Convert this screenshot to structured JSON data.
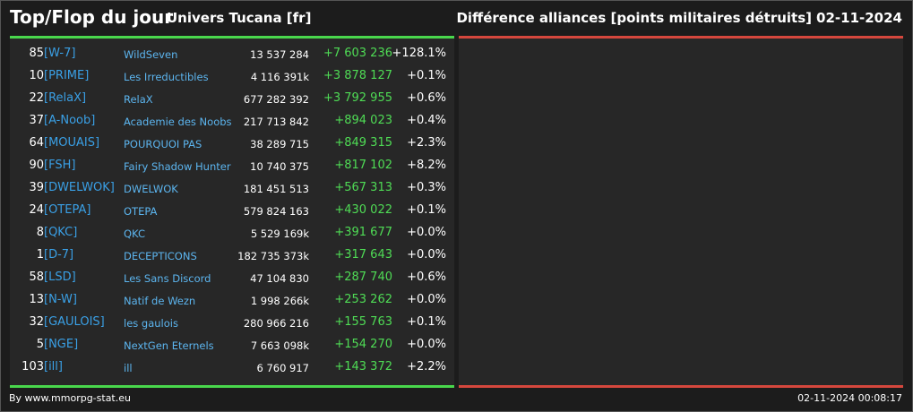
{
  "header": {
    "title": "Top/Flop du jour",
    "universe": "Univers Tucana [fr]",
    "metric": "Différence alliances [points militaires détruits]",
    "date": "02-11-2024"
  },
  "colors": {
    "top_accent": "#49d74c",
    "flop_accent": "#d5473d",
    "tag": "#3aa0e6",
    "name": "#5cb5ef",
    "positive": "#4fdc55"
  },
  "rows": [
    {
      "rank": "85",
      "tag": "[W-7]",
      "name": "WildSeven",
      "points": "13 537 284",
      "diff": "+7 603 236",
      "pct": "+128.1%"
    },
    {
      "rank": "10",
      "tag": "[PRIME]",
      "name": "Les Irreductibles",
      "points": "4 116 391k",
      "diff": "+3 878 127",
      "pct": "+0.1%"
    },
    {
      "rank": "22",
      "tag": "[RelaX]",
      "name": "RelaX",
      "points": "677 282 392",
      "diff": "+3 792 955",
      "pct": "+0.6%"
    },
    {
      "rank": "37",
      "tag": "[A-Noob]",
      "name": "Academie des Noobs",
      "points": "217 713 842",
      "diff": "+894 023",
      "pct": "+0.4%"
    },
    {
      "rank": "64",
      "tag": "[MOUAIS]",
      "name": "POURQUOI PAS",
      "points": "38 289 715",
      "diff": "+849 315",
      "pct": "+2.3%"
    },
    {
      "rank": "90",
      "tag": "[FSH]",
      "name": "Fairy Shadow Hunter",
      "points": "10 740 375",
      "diff": "+817 102",
      "pct": "+8.2%"
    },
    {
      "rank": "39",
      "tag": "[DWELWOK]",
      "name": "DWELWOK",
      "points": "181 451 513",
      "diff": "+567 313",
      "pct": "+0.3%"
    },
    {
      "rank": "24",
      "tag": "[OTEPA]",
      "name": "OTEPA",
      "points": "579 824 163",
      "diff": "+430 022",
      "pct": "+0.1%"
    },
    {
      "rank": "8",
      "tag": "[QKC]",
      "name": "QKC",
      "points": "5 529 169k",
      "diff": "+391 677",
      "pct": "+0.0%"
    },
    {
      "rank": "1",
      "tag": "[D-7]",
      "name": "DECEPTICONS",
      "points": "182 735 373k",
      "diff": "+317 643",
      "pct": "+0.0%"
    },
    {
      "rank": "58",
      "tag": "[LSD]",
      "name": "Les Sans Discord",
      "points": "47 104 830",
      "diff": "+287 740",
      "pct": "+0.6%"
    },
    {
      "rank": "13",
      "tag": "[N-W]",
      "name": "Natif de Wezn",
      "points": "1 998 266k",
      "diff": "+253 262",
      "pct": "+0.0%"
    },
    {
      "rank": "32",
      "tag": "[GAULOIS]",
      "name": "les gaulois",
      "points": "280 966 216",
      "diff": "+155 763",
      "pct": "+0.1%"
    },
    {
      "rank": "5",
      "tag": "[NGE]",
      "name": "NextGen Eternels",
      "points": "7 663 098k",
      "diff": "+154 270",
      "pct": "+0.0%"
    },
    {
      "rank": "103",
      "tag": "[ill]",
      "name": "ill",
      "points": "6 760 917",
      "diff": "+143 372",
      "pct": "+2.2%"
    }
  ],
  "footer": {
    "credit": "By www.mmorpg-stat.eu",
    "timestamp": "02-11-2024 00:08:17"
  }
}
